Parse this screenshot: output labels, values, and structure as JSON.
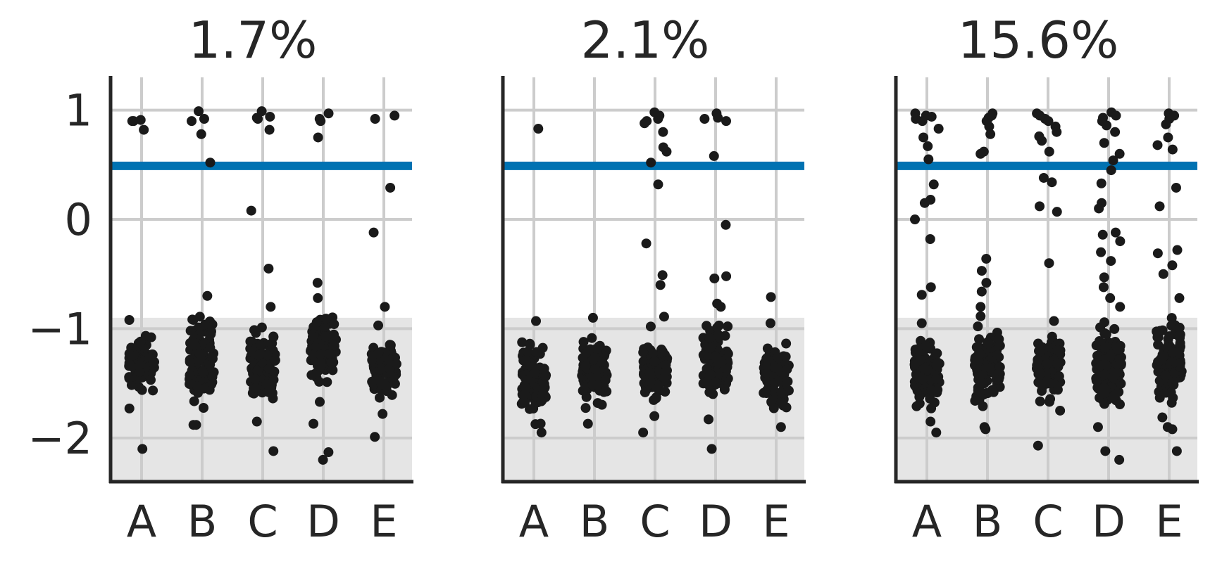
{
  "chart_data": {
    "type": "scatter",
    "categories": [
      "A",
      "B",
      "C",
      "D",
      "E"
    ],
    "ylim": [
      -2.4,
      1.3
    ],
    "yticks": [
      1,
      0,
      -1,
      -2
    ],
    "ytick_labels": [
      "1",
      "0",
      "−1",
      "−2"
    ],
    "reference_line": {
      "y": 0.49,
      "color": "#0072b2"
    },
    "shaded_band": {
      "y_from": -2.4,
      "y_to": -0.9,
      "color": "#e5e5e5"
    },
    "grid": true,
    "point_color": "#1a1a1a",
    "panels": [
      {
        "title": "1.7%",
        "clusters": [
          {
            "category": "A",
            "low": -1.73,
            "high": -0.92,
            "n": 90
          },
          {
            "category": "B",
            "low": -1.88,
            "high": -0.7,
            "n": 110
          },
          {
            "category": "C",
            "low": -1.85,
            "high": -0.8,
            "n": 110
          },
          {
            "category": "D",
            "low": -1.67,
            "high": -0.72,
            "n": 100
          },
          {
            "category": "E",
            "low": -1.78,
            "high": -0.97,
            "n": 90
          }
        ],
        "outliers": [
          {
            "category": "A",
            "values": [
              0.9,
              0.9,
              0.82,
              0.91,
              -2.1
            ]
          },
          {
            "category": "B",
            "values": [
              0.99,
              0.78,
              0.52,
              0.9,
              0.92,
              -1.88
            ]
          },
          {
            "category": "C",
            "values": [
              0.93,
              0.94,
              0.99,
              0.92,
              0.82,
              0.08,
              -0.45,
              -2.12
            ]
          },
          {
            "category": "D",
            "values": [
              0.97,
              0.92,
              0.9,
              0.75,
              -0.58,
              -1.87,
              -2.13,
              -2.2
            ]
          },
          {
            "category": "E",
            "values": [
              0.95,
              0.92,
              0.29,
              -0.12,
              -0.8,
              -1.99
            ]
          }
        ]
      },
      {
        "title": "2.1%",
        "clusters": [
          {
            "category": "A",
            "low": -1.95,
            "high": -0.93,
            "n": 110
          },
          {
            "category": "B",
            "low": -1.87,
            "high": -0.9,
            "n": 110
          },
          {
            "category": "C",
            "low": -1.8,
            "high": -0.98,
            "n": 100
          },
          {
            "category": "D",
            "low": -1.83,
            "high": -0.8,
            "n": 110
          },
          {
            "category": "E",
            "low": -1.9,
            "high": -0.95,
            "n": 90
          }
        ],
        "outliers": [
          {
            "category": "A",
            "values": [
              0.83
            ]
          },
          {
            "category": "B",
            "values": []
          },
          {
            "category": "C",
            "values": [
              0.95,
              0.92,
              0.88,
              0.98,
              0.9,
              0.8,
              0.62,
              0.66,
              0.52,
              0.32,
              -0.22,
              -0.51,
              -0.6,
              -0.89,
              -1.95
            ]
          },
          {
            "category": "D",
            "values": [
              0.97,
              0.92,
              0.93,
              0.9,
              0.58,
              -0.05,
              -0.54,
              -0.52,
              -0.77,
              -2.1
            ]
          },
          {
            "category": "E",
            "values": [
              -0.71
            ]
          }
        ]
      },
      {
        "title": "15.6%",
        "clusters": [
          {
            "category": "A",
            "low": -1.85,
            "high": -0.95,
            "n": 110
          },
          {
            "category": "B",
            "low": -1.9,
            "high": -0.8,
            "n": 120
          },
          {
            "category": "C",
            "low": -1.75,
            "high": -0.93,
            "n": 110
          },
          {
            "category": "D",
            "low": -1.9,
            "high": -0.8,
            "n": 140
          },
          {
            "category": "E",
            "low": -1.9,
            "high": -0.72,
            "n": 110
          }
        ],
        "outliers": [
          {
            "category": "A",
            "values": [
              0.95,
              0.9,
              0.83,
              0.92,
              0.97,
              0.94,
              0.75,
              0.67,
              0.55,
              0.32,
              0.18,
              0.15,
              0.0,
              -0.18,
              -0.62,
              -0.69,
              -1.95
            ]
          },
          {
            "category": "B",
            "values": [
              0.97,
              0.93,
              0.85,
              0.9,
              0.95,
              0.78,
              0.62,
              0.6,
              -0.36,
              -0.47,
              -0.58,
              -0.66,
              -1.92
            ]
          },
          {
            "category": "C",
            "values": [
              0.97,
              0.92,
              0.85,
              0.95,
              0.9,
              0.8,
              0.72,
              0.76,
              0.62,
              0.38,
              0.34,
              0.12,
              0.07,
              -0.4,
              -2.07
            ]
          },
          {
            "category": "D",
            "values": [
              0.98,
              0.93,
              0.9,
              0.86,
              0.95,
              0.8,
              0.7,
              0.6,
              0.54,
              0.45,
              0.33,
              0.15,
              0.1,
              -0.12,
              -0.14,
              -0.2,
              -0.3,
              -0.38,
              -0.53,
              -0.62,
              -0.72,
              -2.12,
              -2.2
            ]
          },
          {
            "category": "E",
            "values": [
              0.97,
              0.92,
              0.87,
              0.95,
              0.75,
              0.68,
              0.64,
              0.29,
              0.12,
              -0.28,
              -0.31,
              -0.42,
              -0.5,
              -1.92,
              -2.12
            ]
          }
        ]
      }
    ]
  }
}
